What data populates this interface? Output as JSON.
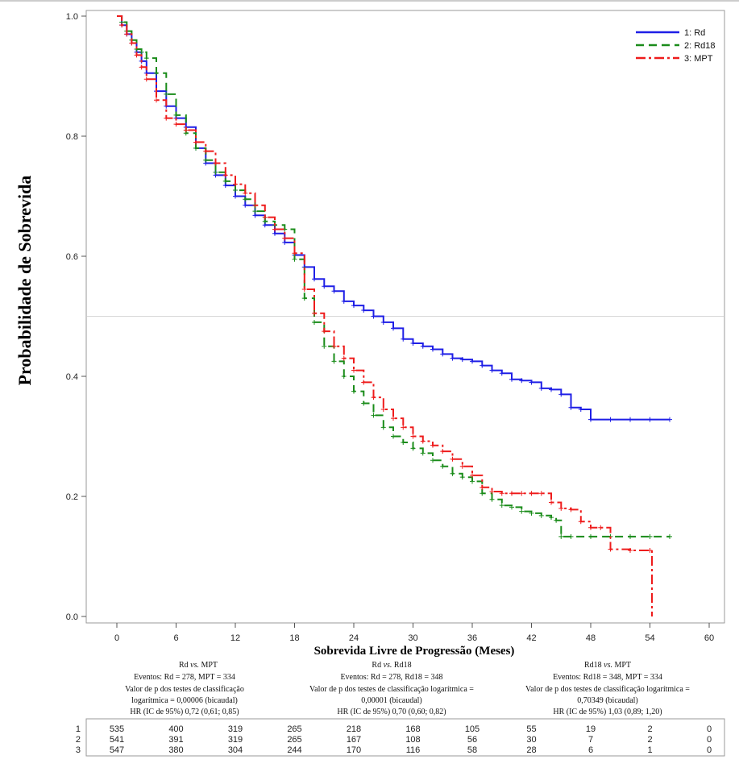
{
  "chart_data": {
    "type": "line",
    "title": "",
    "xlabel": "Sobrevida Livre de Progressão (Meses)",
    "ylabel": "Probabilidade de Sobrevida",
    "xlim": [
      -5,
      61
    ],
    "ylim": [
      -0.01,
      1.005
    ],
    "x_ticks": [
      0,
      6,
      12,
      18,
      24,
      30,
      36,
      42,
      48,
      54,
      60
    ],
    "y_ticks": [
      0.0,
      0.2,
      0.4,
      0.6,
      0.8,
      1.0
    ],
    "y_tick_labels": [
      "0.0",
      "0.2",
      "0.4",
      "0.6",
      "0.8",
      "1.0"
    ],
    "reference_line_y": 0.5,
    "legend_position": "top-right",
    "series": [
      {
        "name": "1: Rd",
        "color": "#1f1fe6",
        "dash": "solid",
        "x": [
          0,
          0.5,
          1,
          1.5,
          2,
          2.5,
          3,
          4,
          5,
          6,
          7,
          8,
          9,
          10,
          11,
          12,
          13,
          14,
          15,
          16,
          17,
          18,
          19,
          20,
          21,
          22,
          23,
          24,
          25,
          26,
          27,
          28,
          29,
          30,
          31,
          32,
          33,
          34,
          35,
          36,
          37,
          38,
          39,
          40,
          41,
          42,
          43,
          44,
          45,
          46,
          47,
          48,
          50,
          52,
          54,
          56
        ],
        "y": [
          1.0,
          0.985,
          0.97,
          0.955,
          0.94,
          0.925,
          0.905,
          0.875,
          0.85,
          0.83,
          0.815,
          0.78,
          0.755,
          0.735,
          0.718,
          0.7,
          0.685,
          0.668,
          0.652,
          0.638,
          0.623,
          0.602,
          0.582,
          0.562,
          0.55,
          0.542,
          0.525,
          0.518,
          0.51,
          0.5,
          0.49,
          0.48,
          0.462,
          0.455,
          0.45,
          0.445,
          0.437,
          0.43,
          0.428,
          0.425,
          0.418,
          0.41,
          0.405,
          0.395,
          0.393,
          0.39,
          0.38,
          0.378,
          0.37,
          0.348,
          0.345,
          0.328,
          0.328,
          0.328,
          0.328,
          0.328
        ]
      },
      {
        "name": "2: Rd18",
        "color": "#1a8c1a",
        "dash": "dashed",
        "x": [
          0,
          0.5,
          1,
          1.5,
          2,
          2.5,
          3,
          4,
          5,
          6,
          7,
          8,
          9,
          10,
          11,
          12,
          13,
          14,
          15,
          16,
          17,
          18,
          19,
          20,
          21,
          22,
          23,
          24,
          25,
          26,
          27,
          28,
          29,
          30,
          31,
          32,
          33,
          34,
          35,
          36,
          37,
          38,
          39,
          40,
          41,
          42,
          43,
          44,
          44.5,
          45,
          46,
          48,
          50,
          52,
          54,
          56
        ],
        "y": [
          1.0,
          0.99,
          0.975,
          0.96,
          0.945,
          0.94,
          0.93,
          0.905,
          0.87,
          0.835,
          0.805,
          0.78,
          0.76,
          0.74,
          0.725,
          0.71,
          0.695,
          0.675,
          0.658,
          0.652,
          0.645,
          0.595,
          0.53,
          0.49,
          0.45,
          0.425,
          0.4,
          0.375,
          0.355,
          0.335,
          0.315,
          0.3,
          0.29,
          0.28,
          0.272,
          0.26,
          0.25,
          0.238,
          0.232,
          0.225,
          0.205,
          0.195,
          0.185,
          0.182,
          0.175,
          0.172,
          0.168,
          0.165,
          0.16,
          0.133,
          0.133,
          0.133,
          0.133,
          0.133,
          0.133,
          0.133
        ]
      },
      {
        "name": "3: MPT",
        "color": "#ee1c1c",
        "dash": "dashdot",
        "x": [
          0,
          0.5,
          1,
          1.5,
          2,
          2.5,
          3,
          4,
          5,
          6,
          7,
          8,
          9,
          10,
          11,
          12,
          13,
          14,
          15,
          16,
          17,
          18,
          19,
          20,
          21,
          22,
          23,
          24,
          25,
          26,
          27,
          28,
          29,
          30,
          31,
          32,
          33,
          34,
          35,
          36,
          37,
          38,
          39,
          40,
          41,
          42,
          43,
          44,
          45,
          46,
          47,
          48,
          49,
          50,
          52,
          54,
          54.2
        ],
        "y": [
          1.0,
          0.985,
          0.97,
          0.955,
          0.935,
          0.915,
          0.895,
          0.86,
          0.83,
          0.82,
          0.81,
          0.79,
          0.775,
          0.755,
          0.735,
          0.72,
          0.705,
          0.685,
          0.665,
          0.645,
          0.63,
          0.605,
          0.545,
          0.505,
          0.475,
          0.45,
          0.43,
          0.41,
          0.39,
          0.365,
          0.345,
          0.33,
          0.315,
          0.3,
          0.292,
          0.285,
          0.275,
          0.262,
          0.25,
          0.235,
          0.215,
          0.208,
          0.205,
          0.205,
          0.205,
          0.205,
          0.205,
          0.19,
          0.18,
          0.178,
          0.158,
          0.148,
          0.148,
          0.112,
          0.11,
          0.11,
          0.0
        ]
      }
    ]
  },
  "comparisons": [
    {
      "title_a": "Rd ",
      "title_vs": "vs.",
      "title_b": " MPT",
      "lines": [
        "Eventos: Rd = 278, MPT = 334",
        "Valor de p dos testes de classificação",
        "logarítmica = 0,00006 (bicaudal)",
        "HR (IC de 95%) 0,72 (0,61; 0,85)"
      ]
    },
    {
      "title_a": "Rd ",
      "title_vs": "vs.",
      "title_b": " Rd18",
      "lines": [
        "Eventos: Rd = 278, Rd18 = 348",
        "Valor de p dos testes de classificação logarítmica =",
        "0,00001 (bicaudal)",
        "HR (IC de 95%) 0,70 (0,60; 0,82)"
      ]
    },
    {
      "title_a": "Rd18 ",
      "title_vs": "vs.",
      "title_b": " MPT",
      "lines": [
        "Eventos: Rd18 = 348, MPT = 334",
        "Valor de p dos testes de classificação logarítmica =",
        "0,70349 (bicaudal)",
        "HR (IC de 95%) 1,03 (0,89; 1,20)"
      ]
    }
  ],
  "risk_table": {
    "rows": [
      {
        "label": "1",
        "values": [
          "535",
          "400",
          "319",
          "265",
          "218",
          "168",
          "105",
          "55",
          "19",
          "2",
          "0"
        ]
      },
      {
        "label": "2",
        "values": [
          "541",
          "391",
          "319",
          "265",
          "167",
          "108",
          "56",
          "30",
          "7",
          "2",
          "0"
        ]
      },
      {
        "label": "3",
        "values": [
          "547",
          "380",
          "304",
          "244",
          "170",
          "116",
          "58",
          "28",
          "6",
          "1",
          "0"
        ]
      }
    ]
  }
}
